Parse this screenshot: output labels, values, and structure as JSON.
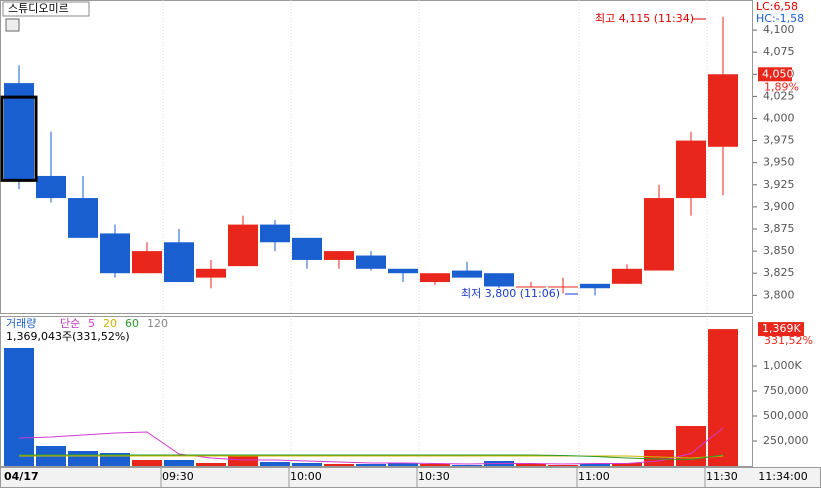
{
  "chart_data": {
    "type": "candlestick",
    "title": "스튜디오미르",
    "categories": [
      "04/17",
      null,
      null,
      null,
      null,
      "09:30",
      null,
      null,
      null,
      "10:00",
      null,
      null,
      null,
      "10:30",
      null,
      null,
      null,
      null,
      "11:00",
      null,
      null,
      null,
      "11:30"
    ],
    "open": [
      4040,
      3935,
      3910,
      3870,
      3825,
      3860,
      3820,
      3833,
      3880,
      3865,
      3840,
      3845,
      3830,
      3815,
      3828,
      3825,
      3810,
      3810,
      3813,
      3813,
      3828,
      3910,
      3968
    ],
    "high": [
      4060,
      3985,
      3935,
      3880,
      3860,
      3875,
      3840,
      3890,
      3885,
      3865,
      3850,
      3850,
      3830,
      3825,
      3838,
      3825,
      3815,
      3820,
      3813,
      3835,
      3925,
      3985,
      4115
    ],
    "low": [
      3920,
      3905,
      3865,
      3820,
      3825,
      3815,
      3808,
      3833,
      3850,
      3830,
      3830,
      3828,
      3815,
      3812,
      3820,
      3808,
      3810,
      3802,
      3800,
      3813,
      3828,
      3890,
      3913
    ],
    "close": [
      3930,
      3910,
      3865,
      3825,
      3850,
      3815,
      3830,
      3880,
      3860,
      3840,
      3850,
      3830,
      3825,
      3825,
      3820,
      3810,
      3810,
      3810,
      3808,
      3830,
      3910,
      3975,
      4050
    ],
    "up_color": "#e8261b",
    "down_color": "#1a5fd0",
    "ylim": [
      3780,
      4134
    ],
    "yticks": [
      {
        "value": 3800,
        "label": "3,800"
      },
      {
        "value": 3825,
        "label": "3,825"
      },
      {
        "value": 3850,
        "label": "3,850"
      },
      {
        "value": 3875,
        "label": "3,875"
      },
      {
        "value": 3900,
        "label": "3,900"
      },
      {
        "value": 3925,
        "label": "3,925"
      },
      {
        "value": 3950,
        "label": "3,950"
      },
      {
        "value": 3975,
        "label": "3,975"
      },
      {
        "value": 4000,
        "label": "4,000"
      },
      {
        "value": 4025,
        "label": "4,025"
      },
      {
        "value": 4050,
        "label": "4,050"
      },
      {
        "value": 4075,
        "label": "4,075"
      },
      {
        "value": 4100,
        "label": "4,100"
      }
    ],
    "high_annotation": "최고 4,115 (11:34)",
    "low_annotation": "최저 3,800 (11:06)",
    "lc_label": "LC:6,58",
    "hc_label": "HC:-1,58",
    "last_price_label": "4,050",
    "change_label": "1,89%",
    "volume": {
      "legend": "거래량",
      "ma_label": "단순",
      "summary": "1,369,043주(331,52%)",
      "values": [
        1180000,
        200000,
        150000,
        130000,
        60000,
        60000,
        30000,
        100000,
        40000,
        30000,
        20000,
        20000,
        30000,
        20000,
        10000,
        50000,
        20000,
        10000,
        20000,
        30000,
        160000,
        400000,
        1369043
      ],
      "last_label": "1,369K",
      "ratio_label": "331,52%",
      "ylim": [
        0,
        1500000
      ],
      "yticks": [
        {
          "value": 250000,
          "label": "250,000"
        },
        {
          "value": 500000,
          "label": "500,000"
        },
        {
          "value": 750000,
          "label": "750,000"
        },
        {
          "value": 1000000,
          "label": "1,000K"
        }
      ],
      "series": [
        {
          "name": "5",
          "color": "#d23ad2",
          "values": [
            280000,
            290000,
            310000,
            330000,
            340000,
            120000,
            80000,
            60000,
            60000,
            50000,
            40000,
            30000,
            30000,
            25000,
            20000,
            25000,
            25000,
            20000,
            25000,
            25000,
            50000,
            125000,
            380000
          ]
        },
        {
          "name": "20",
          "color": "#d4b400",
          "values": [
            100000,
            100000,
            100000,
            100000,
            100000,
            100000,
            100000,
            100000,
            100000,
            100000,
            100000,
            100000,
            100000,
            100000,
            100000,
            100000,
            100000,
            100000,
            100000,
            100000,
            90000,
            80000,
            100000
          ]
        },
        {
          "name": "60",
          "color": "#2a9a2a",
          "values": [
            110000,
            110000,
            110000,
            110000,
            110000,
            110000,
            110000,
            110000,
            110000,
            110000,
            110000,
            110000,
            110000,
            110000,
            110000,
            110000,
            110000,
            105000,
            95000,
            80000,
            70000,
            65000,
            110000
          ]
        },
        {
          "name": "120",
          "color": "#888888",
          "values": [
            null,
            null,
            null,
            null,
            null,
            null,
            null,
            null,
            null,
            null,
            null,
            null,
            null,
            null,
            null,
            null,
            null,
            null,
            null,
            null,
            null,
            null,
            null
          ]
        }
      ]
    },
    "time_label": "11:34:00"
  }
}
